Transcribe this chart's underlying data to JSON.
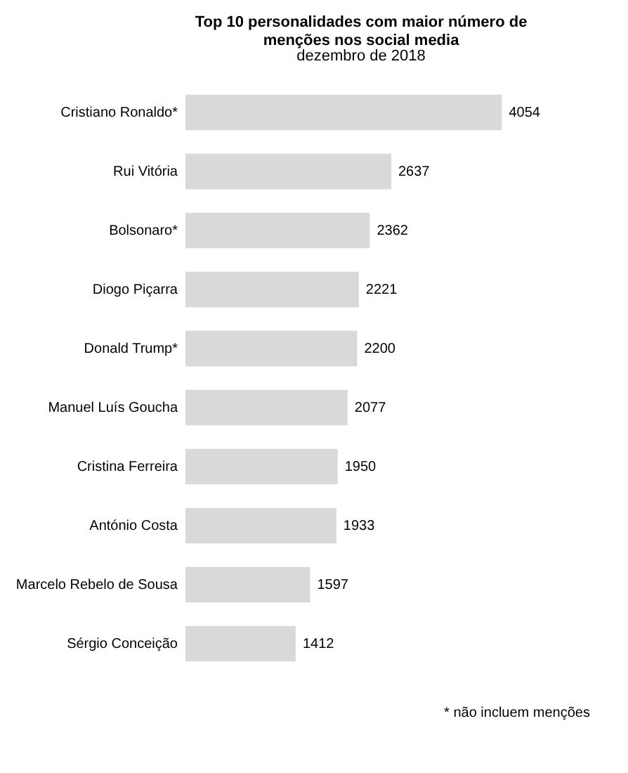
{
  "chart_data": {
    "type": "bar",
    "orientation": "horizontal",
    "title": "Top 10 personalidades com maior número de menções nos social media",
    "subtitle": "dezembro de 2018",
    "categories": [
      "Cristiano Ronaldo*",
      "Rui Vitória",
      "Bolsonaro*",
      "Diogo Piçarra",
      "Donald Trump*",
      "Manuel Luís Goucha",
      "Cristina Ferreira",
      "António Costa",
      "Marcelo Rebelo de Sousa",
      "Sérgio Conceição"
    ],
    "values": [
      4054,
      2637,
      2362,
      2221,
      2200,
      2077,
      1950,
      1933,
      1597,
      1412
    ],
    "color": "#d9d9d9",
    "data_labels": true,
    "annotations": [
      "*  não incluem menções"
    ]
  }
}
